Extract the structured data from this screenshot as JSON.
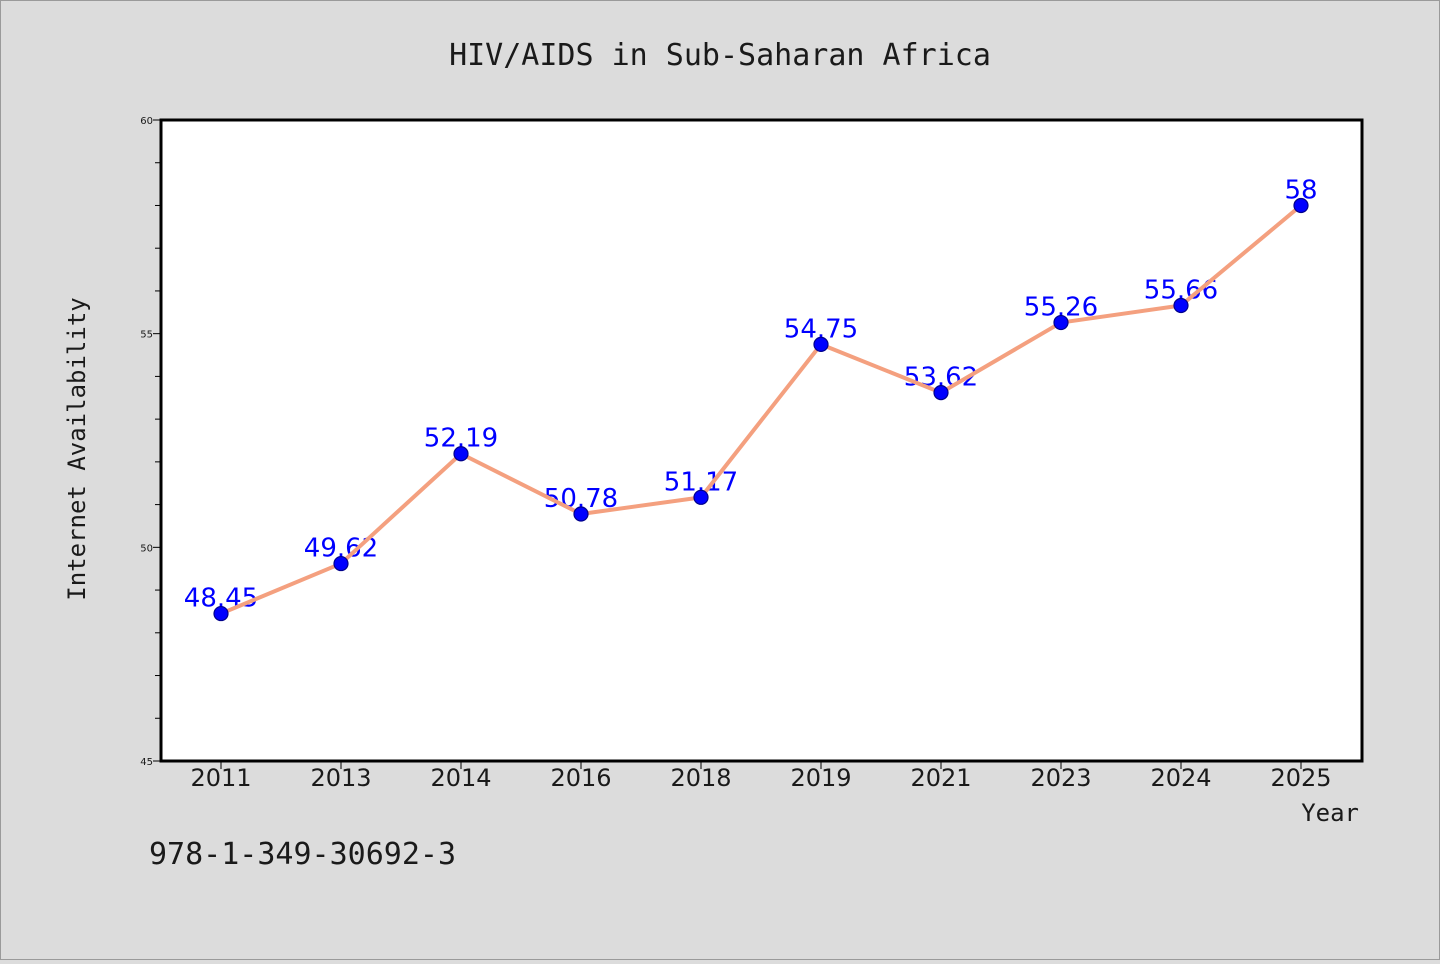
{
  "chart_data": {
    "type": "line",
    "title": "HIV/AIDS in Sub-Saharan Africa",
    "xlabel": "Year",
    "ylabel": "Internet Availability",
    "categories": [
      "2011",
      "2013",
      "2014",
      "2016",
      "2018",
      "2019",
      "2021",
      "2023",
      "2024",
      "2025"
    ],
    "series": [
      {
        "values": [
          48.45,
          49.62,
          52.19,
          50.78,
          51.17,
          54.75,
          53.62,
          55.26,
          55.66,
          58
        ]
      }
    ],
    "data_labels": [
      "48.45",
      "49.62",
      "52.19",
      "50.78",
      "51.17",
      "54.75",
      "53.62",
      "55.26",
      "55.66",
      "58"
    ],
    "ylim": [
      45,
      60
    ],
    "yticks": [
      45,
      50,
      55,
      60
    ],
    "grid": false,
    "legend": "none",
    "colors": {
      "line": "#f4a07f",
      "marker": "#0000ff",
      "marker_edge": "#00008b",
      "label": "#0000ff",
      "background": "#dcdcdc",
      "plot_background": "#ffffff"
    }
  },
  "footer_text": "978-1-349-30692-3"
}
